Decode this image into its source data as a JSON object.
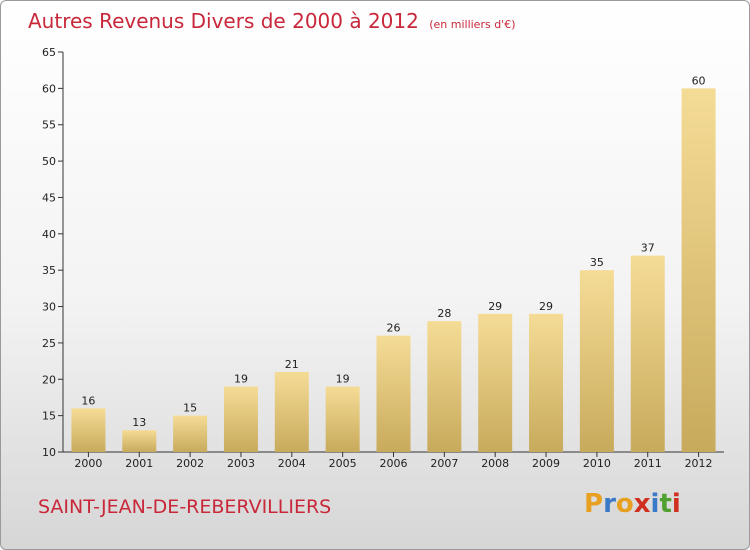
{
  "title": "Autres Revenus Divers de 2000 à 2012",
  "unit": "(en milliers d'€)",
  "commune": "SAINT-JEAN-DE-REBERVILLIERS",
  "logo": {
    "letters": [
      "P",
      "r",
      "o",
      "x",
      "i",
      "t",
      "i"
    ],
    "colors": [
      "#e8a020",
      "#3a78c8",
      "#e8a020",
      "#d03020",
      "#3a78c8",
      "#50a030",
      "#d03020"
    ]
  },
  "colors": {
    "bar_top": "#f5dc96",
    "bar_bottom": "#c8aa5c",
    "title": "#c8283a"
  },
  "chart_data": {
    "type": "bar",
    "categories": [
      "2000",
      "2001",
      "2002",
      "2003",
      "2004",
      "2005",
      "2006",
      "2007",
      "2008",
      "2009",
      "2010",
      "2011",
      "2012"
    ],
    "values": [
      16,
      13,
      15,
      19,
      21,
      19,
      26,
      28,
      29,
      29,
      35,
      37,
      60
    ],
    "ylim": [
      10,
      65
    ],
    "yticks": [
      10,
      15,
      20,
      25,
      30,
      35,
      40,
      45,
      50,
      55,
      60,
      65
    ],
    "grid": false
  }
}
